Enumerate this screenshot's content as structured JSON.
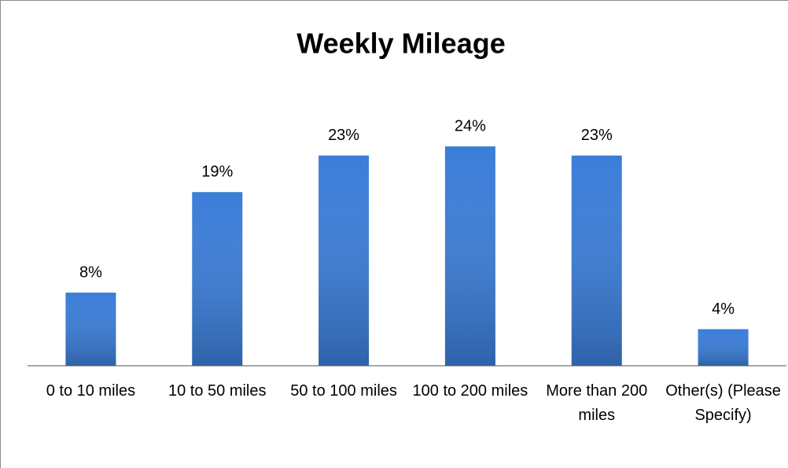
{
  "chart_data": {
    "type": "bar",
    "title": "Weekly Mileage",
    "categories": [
      "0 to 10 miles",
      "10 to 50 miles",
      "50 to 100 miles",
      "100 to 200 miles",
      "More than 200 miles",
      "Other(s) (Please Specify)"
    ],
    "values": [
      8,
      19,
      23,
      24,
      23,
      4
    ],
    "value_labels": [
      "8%",
      "19%",
      "23%",
      "24%",
      "23%",
      "4%"
    ],
    "color": "#3b7dd8"
  }
}
